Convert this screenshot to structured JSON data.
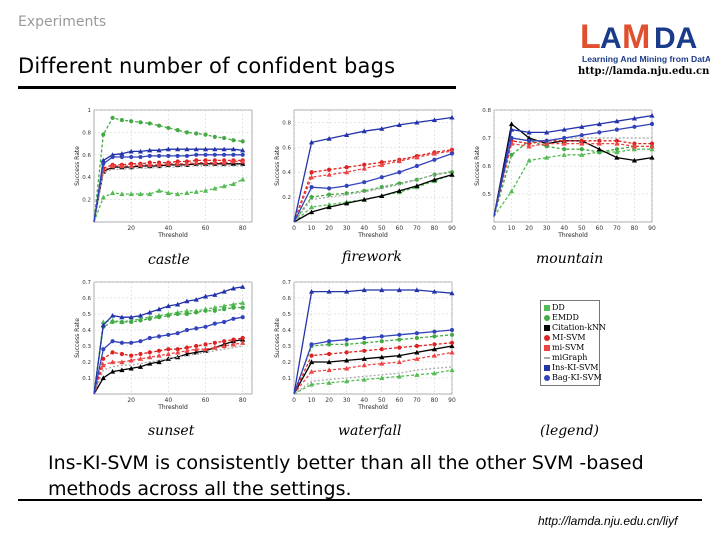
{
  "header": {
    "section_label": "Experiments",
    "title": "Different number of confident bags",
    "logo_text": "LAMDA",
    "logo_tagline": "Learning And Mining from DatA",
    "logo_url": "http://lamda.nju.edu.cn"
  },
  "colors": {
    "DD": "#55bb55",
    "EMDD": "#44aa44",
    "Citation-kNN": "#000000",
    "MI-SVM": "#dd2222",
    "mi-SVM": "#ee4444",
    "miGraph": "#aaaaaa",
    "Ins-KI-SVM": "#2233aa",
    "Bag-KI-SVM": "#3344bb",
    "logo_red": "#e05030",
    "logo_blue": "#1a3a8a"
  },
  "legend": {
    "caption": "(legend)",
    "entries": [
      "DD",
      "EMDD",
      "Citation-kNN",
      "MI-SVM",
      "mi-SVM",
      "miGraph",
      "Ins-KI-SVM",
      "Bag-KI-SVM"
    ]
  },
  "chart_data": [
    {
      "type": "line",
      "title": "castle",
      "xlabel": "Threshold",
      "ylabel": "Success Rate",
      "x": [
        0,
        5,
        10,
        15,
        20,
        25,
        30,
        35,
        40,
        45,
        50,
        55,
        60,
        65,
        70,
        75,
        80
      ],
      "xticks": [
        20,
        40,
        60,
        80
      ],
      "yticks": [
        0.2,
        0.4,
        0.6,
        0.8,
        1
      ],
      "xlim": [
        0,
        85
      ],
      "ylim": [
        0,
        1
      ],
      "series": [
        {
          "name": "DD",
          "values": [
            0,
            0.22,
            0.26,
            0.25,
            0.25,
            0.25,
            0.25,
            0.28,
            0.26,
            0.25,
            0.26,
            0.27,
            0.28,
            0.3,
            0.32,
            0.34,
            0.38
          ]
        },
        {
          "name": "EMDD",
          "values": [
            0,
            0.78,
            0.93,
            0.91,
            0.9,
            0.89,
            0.88,
            0.86,
            0.84,
            0.82,
            0.8,
            0.79,
            0.78,
            0.76,
            0.75,
            0.73,
            0.72
          ]
        },
        {
          "name": "Citation-kNN",
          "values": [
            0,
            0.45,
            0.49,
            0.49,
            0.49,
            0.5,
            0.5,
            0.5,
            0.51,
            0.51,
            0.51,
            0.52,
            0.52,
            0.52,
            0.52,
            0.52,
            0.52
          ]
        },
        {
          "name": "MI-SVM",
          "values": [
            0,
            0.48,
            0.51,
            0.51,
            0.52,
            0.52,
            0.53,
            0.53,
            0.53,
            0.54,
            0.54,
            0.55,
            0.55,
            0.55,
            0.55,
            0.55,
            0.55
          ]
        },
        {
          "name": "mi-SVM",
          "values": [
            0,
            0.46,
            0.5,
            0.5,
            0.5,
            0.51,
            0.51,
            0.51,
            0.52,
            0.52,
            0.52,
            0.53,
            0.53,
            0.53,
            0.53,
            0.54,
            0.54
          ]
        },
        {
          "name": "miGraph",
          "values": [
            0,
            0.44,
            0.47,
            0.47,
            0.48,
            0.48,
            0.48,
            0.49,
            0.49,
            0.49,
            0.5,
            0.5,
            0.5,
            0.5,
            0.5,
            0.5,
            0.5
          ]
        },
        {
          "name": "Ins-KI-SVM",
          "values": [
            0,
            0.55,
            0.6,
            0.61,
            0.63,
            0.63,
            0.64,
            0.64,
            0.65,
            0.65,
            0.65,
            0.65,
            0.65,
            0.65,
            0.65,
            0.65,
            0.64
          ]
        },
        {
          "name": "Bag-KI-SVM",
          "values": [
            0,
            0.52,
            0.58,
            0.58,
            0.58,
            0.58,
            0.59,
            0.59,
            0.59,
            0.59,
            0.59,
            0.6,
            0.6,
            0.6,
            0.6,
            0.6,
            0.6
          ]
        }
      ]
    },
    {
      "type": "line",
      "title": "firework",
      "xlabel": "Threshold",
      "ylabel": "Success Rate",
      "x": [
        0,
        10,
        20,
        30,
        40,
        50,
        60,
        70,
        80,
        90
      ],
      "xticks": [
        0,
        10,
        20,
        30,
        40,
        50,
        60,
        70,
        80,
        90
      ],
      "yticks": [
        0.2,
        0.4,
        0.6,
        0.8
      ],
      "xlim": [
        0,
        90
      ],
      "ylim": [
        0,
        0.9
      ],
      "series": [
        {
          "name": "DD",
          "values": [
            0,
            0.12,
            0.14,
            0.16,
            0.18,
            0.21,
            0.24,
            0.28,
            0.33,
            0.38
          ]
        },
        {
          "name": "EMDD",
          "values": [
            0,
            0.2,
            0.22,
            0.23,
            0.25,
            0.28,
            0.31,
            0.34,
            0.38,
            0.4
          ]
        },
        {
          "name": "Citation-kNN",
          "values": [
            0,
            0.08,
            0.12,
            0.15,
            0.18,
            0.21,
            0.25,
            0.29,
            0.34,
            0.38
          ]
        },
        {
          "name": "MI-SVM",
          "values": [
            0,
            0.4,
            0.42,
            0.44,
            0.46,
            0.48,
            0.5,
            0.53,
            0.56,
            0.58
          ]
        },
        {
          "name": "mi-SVM",
          "values": [
            0,
            0.36,
            0.38,
            0.4,
            0.43,
            0.46,
            0.49,
            0.52,
            0.55,
            0.57
          ]
        },
        {
          "name": "miGraph",
          "values": [
            0,
            0.18,
            0.2,
            0.22,
            0.24,
            0.27,
            0.3,
            0.34,
            0.38,
            0.41
          ]
        },
        {
          "name": "Ins-KI-SVM",
          "values": [
            0,
            0.64,
            0.67,
            0.7,
            0.73,
            0.75,
            0.78,
            0.8,
            0.82,
            0.84
          ]
        },
        {
          "name": "Bag-KI-SVM",
          "values": [
            0,
            0.28,
            0.27,
            0.29,
            0.32,
            0.36,
            0.4,
            0.45,
            0.5,
            0.55
          ]
        }
      ]
    },
    {
      "type": "line",
      "title": "mountain",
      "xlabel": "Threshold",
      "ylabel": "Success Rate",
      "x": [
        0,
        10,
        20,
        30,
        40,
        50,
        60,
        70,
        80,
        90
      ],
      "xticks": [
        0,
        10,
        20,
        30,
        40,
        50,
        60,
        70,
        80,
        90
      ],
      "yticks": [
        0.5,
        0.6,
        0.7,
        0.8
      ],
      "xlim": [
        0,
        90
      ],
      "ylim": [
        0.4,
        0.8
      ],
      "series": [
        {
          "name": "DD",
          "values": [
            0.42,
            0.51,
            0.62,
            0.63,
            0.64,
            0.64,
            0.65,
            0.65,
            0.66,
            0.66
          ]
        },
        {
          "name": "EMDD",
          "values": [
            0.42,
            0.64,
            0.69,
            0.67,
            0.66,
            0.66,
            0.65,
            0.66,
            0.67,
            0.67
          ]
        },
        {
          "name": "Citation-kNN",
          "values": [
            0.42,
            0.75,
            0.7,
            0.68,
            0.69,
            0.69,
            0.66,
            0.63,
            0.62,
            0.63
          ]
        },
        {
          "name": "MI-SVM",
          "values": [
            0.42,
            0.69,
            0.68,
            0.69,
            0.69,
            0.69,
            0.69,
            0.69,
            0.68,
            0.68
          ]
        },
        {
          "name": "mi-SVM",
          "values": [
            0.42,
            0.68,
            0.67,
            0.68,
            0.68,
            0.68,
            0.68,
            0.68,
            0.67,
            0.67
          ]
        },
        {
          "name": "miGraph",
          "values": [
            0.42,
            0.7,
            0.69,
            0.69,
            0.7,
            0.7,
            0.7,
            0.7,
            0.7,
            0.7
          ]
        },
        {
          "name": "Ins-KI-SVM",
          "values": [
            0.42,
            0.73,
            0.72,
            0.72,
            0.73,
            0.74,
            0.75,
            0.76,
            0.77,
            0.78
          ]
        },
        {
          "name": "Bag-KI-SVM",
          "values": [
            0.42,
            0.7,
            0.69,
            0.69,
            0.7,
            0.71,
            0.72,
            0.73,
            0.74,
            0.75
          ]
        }
      ]
    },
    {
      "type": "line",
      "title": "sunset",
      "xlabel": "Threshold",
      "ylabel": "Success Rate",
      "x": [
        0,
        5,
        10,
        15,
        20,
        25,
        30,
        35,
        40,
        45,
        50,
        55,
        60,
        65,
        70,
        75,
        80
      ],
      "xticks": [
        20,
        40,
        60,
        80
      ],
      "yticks": [
        0.1,
        0.2,
        0.3,
        0.4,
        0.5,
        0.6,
        0.7
      ],
      "xlim": [
        0,
        85
      ],
      "ylim": [
        0,
        0.7
      ],
      "series": [
        {
          "name": "DD",
          "values": [
            0,
            0.45,
            0.46,
            0.45,
            0.46,
            0.47,
            0.48,
            0.49,
            0.5,
            0.51,
            0.52,
            0.52,
            0.53,
            0.54,
            0.55,
            0.56,
            0.57
          ]
        },
        {
          "name": "EMDD",
          "values": [
            0,
            0.42,
            0.45,
            0.45,
            0.45,
            0.46,
            0.47,
            0.48,
            0.49,
            0.5,
            0.5,
            0.51,
            0.52,
            0.52,
            0.53,
            0.54,
            0.54
          ]
        },
        {
          "name": "Citation-kNN",
          "values": [
            0,
            0.1,
            0.14,
            0.15,
            0.16,
            0.17,
            0.19,
            0.2,
            0.22,
            0.23,
            0.25,
            0.26,
            0.27,
            0.29,
            0.31,
            0.33,
            0.34
          ]
        },
        {
          "name": "MI-SVM",
          "values": [
            0,
            0.22,
            0.26,
            0.25,
            0.24,
            0.25,
            0.26,
            0.27,
            0.28,
            0.28,
            0.29,
            0.3,
            0.31,
            0.32,
            0.33,
            0.34,
            0.35
          ]
        },
        {
          "name": "mi-SVM",
          "values": [
            0,
            0.18,
            0.2,
            0.2,
            0.21,
            0.22,
            0.23,
            0.24,
            0.25,
            0.26,
            0.27,
            0.28,
            0.28,
            0.29,
            0.3,
            0.31,
            0.32
          ]
        },
        {
          "name": "miGraph",
          "values": [
            0,
            0.15,
            0.17,
            0.18,
            0.18,
            0.19,
            0.2,
            0.21,
            0.22,
            0.23,
            0.24,
            0.25,
            0.26,
            0.27,
            0.28,
            0.29,
            0.3
          ]
        },
        {
          "name": "Ins-KI-SVM",
          "values": [
            0,
            0.43,
            0.49,
            0.48,
            0.48,
            0.49,
            0.51,
            0.53,
            0.55,
            0.56,
            0.58,
            0.59,
            0.61,
            0.62,
            0.64,
            0.66,
            0.67
          ]
        },
        {
          "name": "Bag-KI-SVM",
          "values": [
            0,
            0.28,
            0.33,
            0.32,
            0.32,
            0.33,
            0.35,
            0.36,
            0.37,
            0.38,
            0.4,
            0.41,
            0.42,
            0.44,
            0.45,
            0.47,
            0.48
          ]
        }
      ]
    },
    {
      "type": "line",
      "title": "waterfall",
      "xlabel": "Threshold",
      "ylabel": "Success Rate",
      "x": [
        0,
        10,
        20,
        30,
        40,
        50,
        60,
        70,
        80,
        90
      ],
      "xticks": [
        0,
        10,
        20,
        30,
        40,
        50,
        60,
        70,
        80,
        90
      ],
      "yticks": [
        0.1,
        0.2,
        0.3,
        0.4,
        0.5,
        0.6,
        0.7
      ],
      "xlim": [
        0,
        90
      ],
      "ylim": [
        0,
        0.7
      ],
      "series": [
        {
          "name": "DD",
          "values": [
            0,
            0.06,
            0.07,
            0.08,
            0.09,
            0.1,
            0.11,
            0.12,
            0.13,
            0.15
          ]
        },
        {
          "name": "EMDD",
          "values": [
            0,
            0.3,
            0.31,
            0.31,
            0.32,
            0.33,
            0.34,
            0.35,
            0.36,
            0.37
          ]
        },
        {
          "name": "Citation-kNN",
          "values": [
            0,
            0.2,
            0.2,
            0.21,
            0.22,
            0.23,
            0.24,
            0.26,
            0.28,
            0.3
          ]
        },
        {
          "name": "MI-SVM",
          "values": [
            0,
            0.24,
            0.25,
            0.26,
            0.27,
            0.28,
            0.29,
            0.3,
            0.31,
            0.32
          ]
        },
        {
          "name": "mi-SVM",
          "values": [
            0,
            0.14,
            0.15,
            0.16,
            0.18,
            0.19,
            0.2,
            0.22,
            0.24,
            0.26
          ]
        },
        {
          "name": "miGraph",
          "values": [
            0,
            0.08,
            0.09,
            0.1,
            0.11,
            0.12,
            0.13,
            0.15,
            0.16,
            0.17
          ]
        },
        {
          "name": "Ins-KI-SVM",
          "values": [
            0,
            0.64,
            0.64,
            0.64,
            0.65,
            0.65,
            0.65,
            0.65,
            0.64,
            0.63
          ]
        },
        {
          "name": "Bag-KI-SVM",
          "values": [
            0,
            0.31,
            0.33,
            0.34,
            0.35,
            0.36,
            0.37,
            0.38,
            0.39,
            0.4
          ]
        }
      ]
    }
  ],
  "conclusion": "Ins-KI-SVM is consistently better than all the other SVM -based methods across all the settings.",
  "footer_url": "http://lamda.nju.edu.cn/liyf"
}
